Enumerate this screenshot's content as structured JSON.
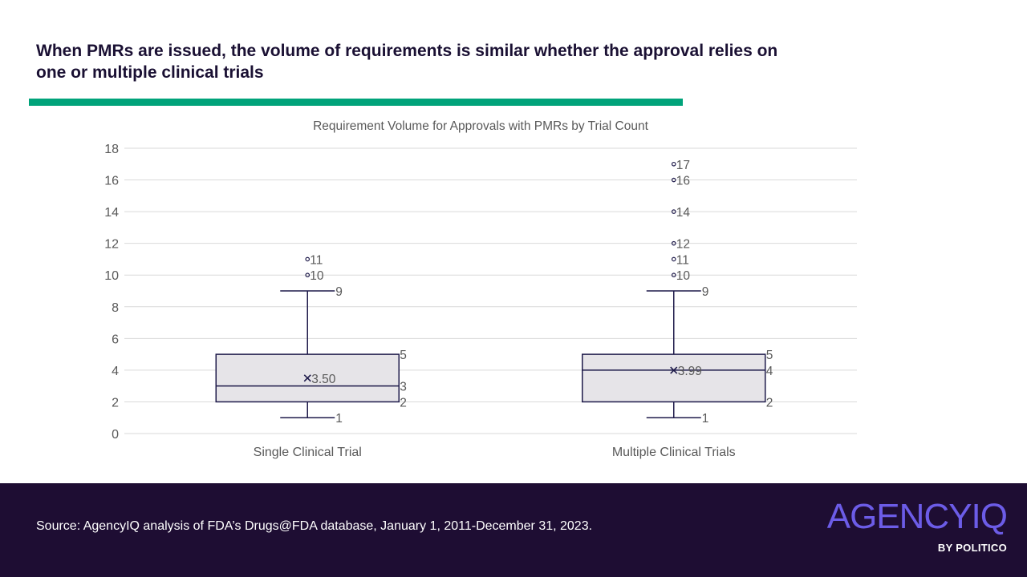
{
  "headline": "When PMRs are issued, the volume of requirements is similar whether the approval relies on one or multiple clinical trials",
  "colors": {
    "accent": "#00a37a",
    "footer_bg": "#1e0d33",
    "box_fill": "#e6e4e8",
    "box_stroke": "#1e1a4a",
    "grid": "#d9d9d9",
    "label": "#595959",
    "logo": "#6c5ce7"
  },
  "chart_data": {
    "type": "boxplot",
    "title": "Requirement Volume for Approvals with PMRs by Trial Count",
    "ylim": [
      0,
      18
    ],
    "yticks": [
      0,
      2,
      4,
      6,
      8,
      10,
      12,
      14,
      16,
      18
    ],
    "grid": true,
    "series": [
      {
        "name": "Single Clinical Trial",
        "min": 1,
        "q1": 2,
        "median": 3,
        "q3": 5,
        "max": 9,
        "mean": 3.5,
        "mean_label": "3.50",
        "outliers": [
          10,
          11
        ]
      },
      {
        "name": "Multiple Clinical Trials",
        "min": 1,
        "q1": 2,
        "median": 4,
        "q3": 5,
        "max": 9,
        "mean": 3.99,
        "mean_label": "3.99",
        "outliers": [
          10,
          11,
          12,
          14,
          16,
          17
        ]
      }
    ]
  },
  "footer": {
    "source": "Source: AgencyIQ analysis of FDA’s Drugs@FDA database, January 1, 2011-December 31, 2023."
  },
  "logo": {
    "main": "AGENCYIQ",
    "sub": "BY POLITICO"
  }
}
